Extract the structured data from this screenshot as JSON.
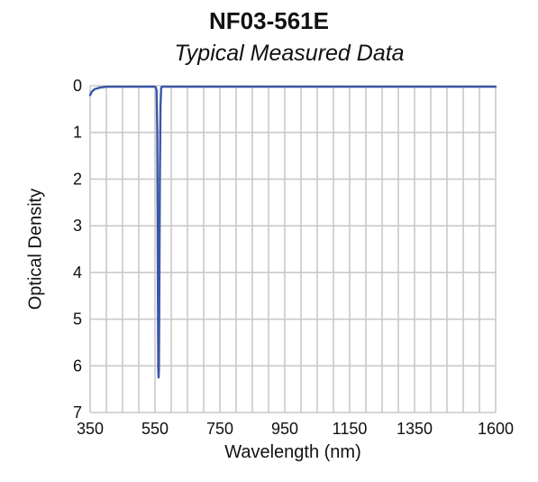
{
  "chart_data": {
    "type": "line",
    "title": "NF03-561E",
    "subtitle": "Typical Measured Data",
    "xlabel": "Wavelength (nm)",
    "ylabel": "Optical Density",
    "xlim": [
      350,
      1600
    ],
    "ylim": [
      0,
      7
    ],
    "y_inverted": true,
    "grid": true,
    "x_ticks": [
      350,
      550,
      750,
      950,
      1150,
      1350,
      1600
    ],
    "y_ticks": [
      0,
      1,
      2,
      3,
      4,
      5,
      6,
      7
    ],
    "series": [
      {
        "color": "#3a56a8",
        "x": [
          350,
          356,
          365,
          380,
          400,
          430,
          460,
          490,
          520,
          545,
          549,
          552,
          555,
          557,
          559,
          560,
          561,
          562,
          563,
          565,
          567,
          569,
          571,
          575,
          590,
          650,
          800,
          1000,
          1200,
          1400,
          1600
        ],
        "y": [
          0.2,
          0.12,
          0.07,
          0.04,
          0.02,
          0.02,
          0.02,
          0.02,
          0.02,
          0.02,
          0.02,
          0.03,
          0.1,
          1.0,
          4.5,
          6.05,
          6.25,
          6.1,
          5.0,
          2.0,
          0.4,
          0.05,
          0.02,
          0.02,
          0.02,
          0.02,
          0.02,
          0.02,
          0.02,
          0.02,
          0.02
        ]
      }
    ]
  }
}
